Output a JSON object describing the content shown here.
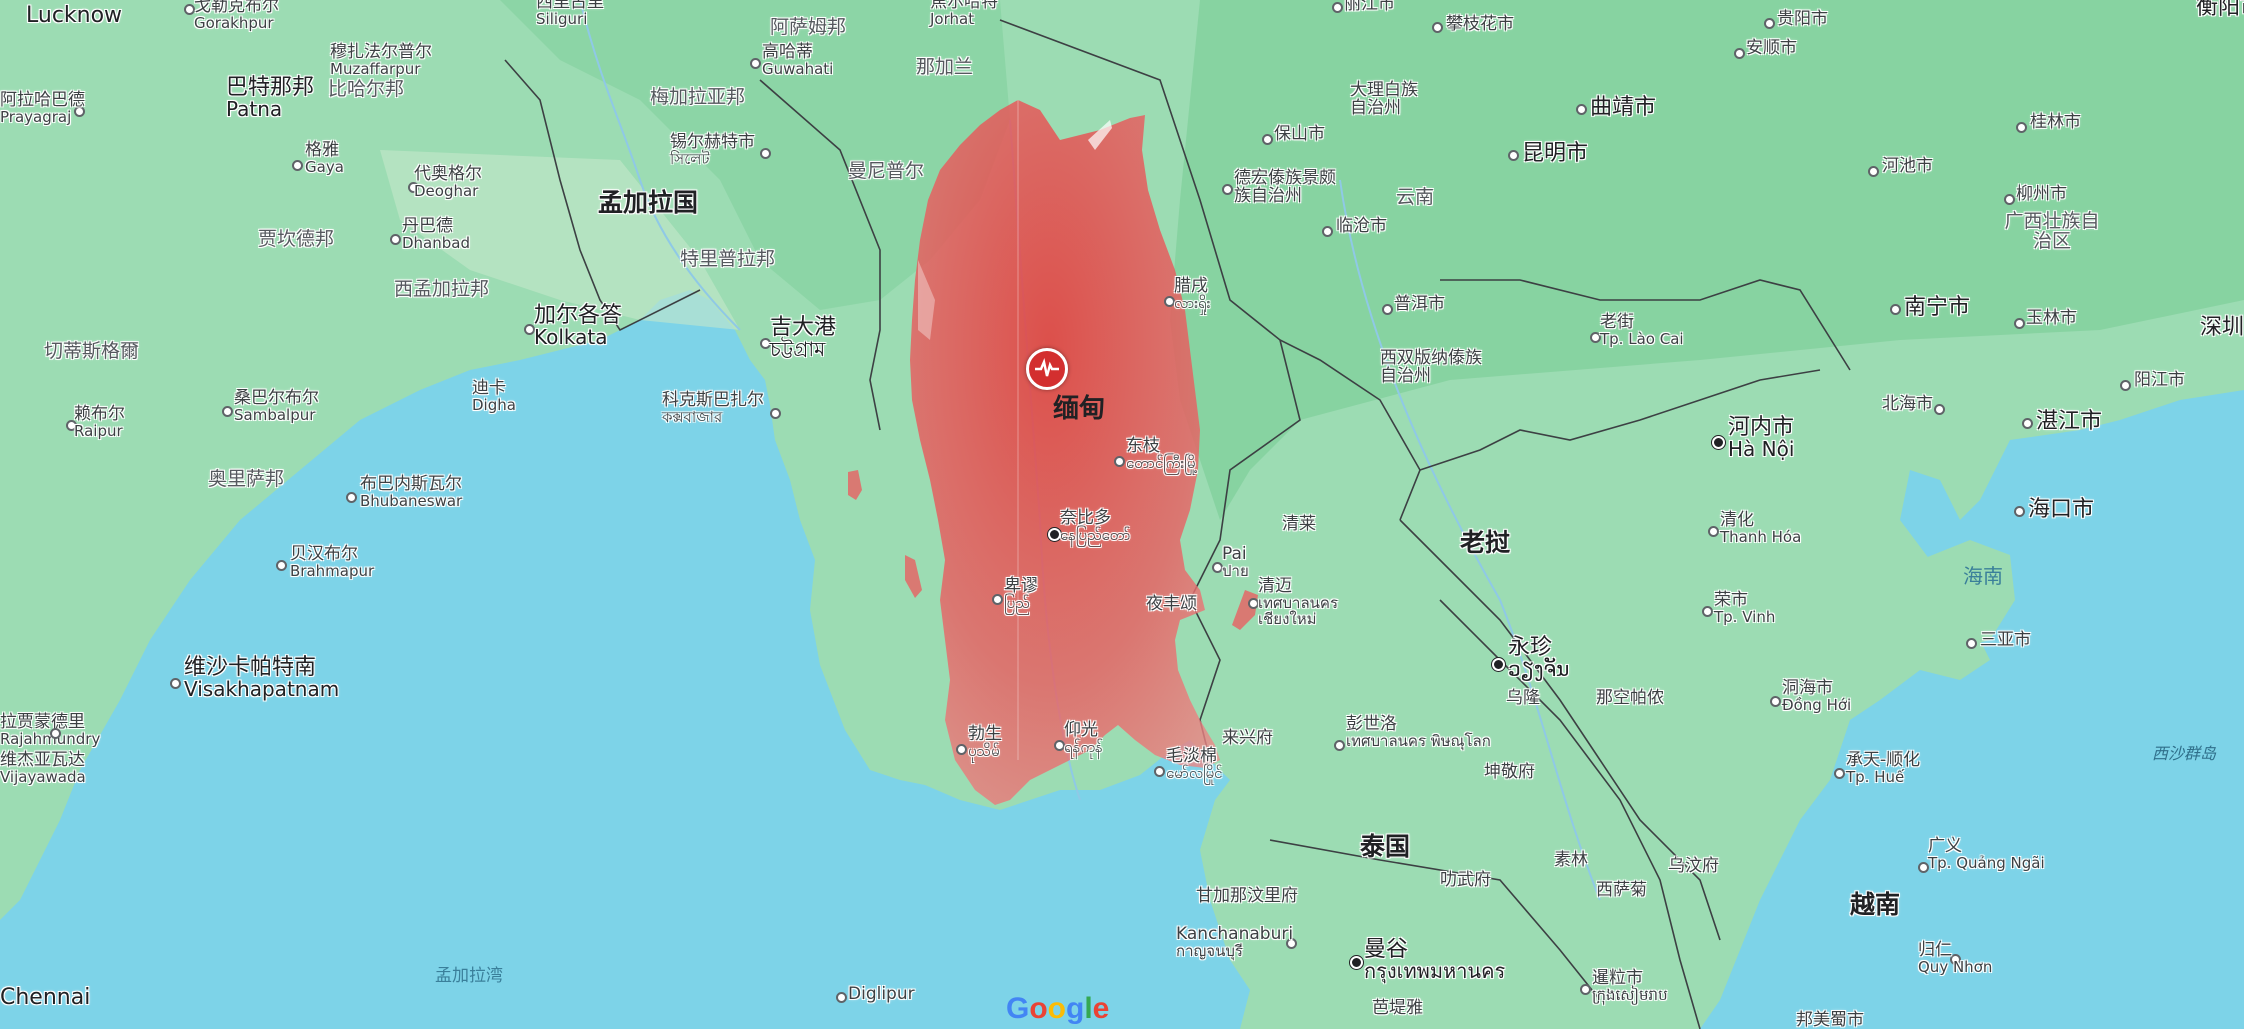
{
  "map": {
    "countries": [
      "孟加拉国",
      "缅甸",
      "老挝",
      "泰国",
      "越南"
    ],
    "regions": [
      "云南",
      "广西壮族自治区"
    ],
    "seas": [
      "海南",
      "孟加拉湾",
      "西沙群岛"
    ],
    "places": [
      {
        "zh": "Lucknow",
        "en": ""
      },
      {
        "zh": "戈勒克布尔",
        "en": "Gorakhpur"
      },
      {
        "zh": "西里古里",
        "en": "Siliguri"
      },
      {
        "zh": "阿萨姆邦",
        "en": ""
      },
      {
        "zh": "焦尔哈特",
        "en": "Jorhat"
      },
      {
        "zh": "丽江市",
        "en": ""
      },
      {
        "zh": "攀枝花市",
        "en": ""
      },
      {
        "zh": "贵阳市",
        "en": ""
      },
      {
        "zh": "衡阳市",
        "en": ""
      },
      {
        "zh": "巴特那邦",
        "en": "Patna"
      },
      {
        "zh": "穆扎法尔普尔",
        "en": "Muzaffarpur"
      },
      {
        "zh": "比哈尔邦",
        "en": ""
      },
      {
        "zh": "高哈蒂",
        "en": "Guwahati"
      },
      {
        "zh": "那加兰",
        "en": ""
      },
      {
        "zh": "大理白族自治州",
        "en": ""
      },
      {
        "zh": "曲靖市",
        "en": ""
      },
      {
        "zh": "安顺市",
        "en": ""
      },
      {
        "zh": "桂林市",
        "en": ""
      },
      {
        "zh": "阿拉哈巴德",
        "en": "Prayagraj"
      },
      {
        "zh": "梅加拉亚邦",
        "en": ""
      },
      {
        "zh": "保山市",
        "en": ""
      },
      {
        "zh": "昆明市",
        "en": ""
      },
      {
        "zh": "锡尔赫特市",
        "en": "সিলেট"
      },
      {
        "zh": "格雅",
        "en": "Gaya"
      },
      {
        "zh": "曼尼普尔",
        "en": ""
      },
      {
        "zh": "德宏傣族景颇族自治州",
        "en": ""
      },
      {
        "zh": "河池市",
        "en": ""
      },
      {
        "zh": "代奥格尔",
        "en": "Deoghar"
      },
      {
        "zh": "柳州市",
        "en": ""
      },
      {
        "zh": "临沧市",
        "en": ""
      },
      {
        "zh": "贾坎德邦",
        "en": ""
      },
      {
        "zh": "丹巴德",
        "en": "Dhanbad"
      },
      {
        "zh": "特里普拉邦",
        "en": ""
      },
      {
        "zh": "西孟加拉邦",
        "en": ""
      },
      {
        "zh": "腊戌",
        "en": "လားရှိုး"
      },
      {
        "zh": "普洱市",
        "en": ""
      },
      {
        "zh": "老街",
        "en": "Tp. Lào Cai"
      },
      {
        "zh": "南宁市",
        "en": ""
      },
      {
        "zh": "玉林市",
        "en": ""
      },
      {
        "zh": "深圳",
        "en": ""
      },
      {
        "zh": "切蒂斯格爾",
        "en": ""
      },
      {
        "zh": "加尔各答",
        "en": "Kolkata"
      },
      {
        "zh": "吉大港",
        "en": "চট্টগ্রাম"
      },
      {
        "zh": "西双版纳傣族自治州",
        "en": ""
      },
      {
        "zh": "阳江市",
        "en": ""
      },
      {
        "zh": "迪卡",
        "en": "Digha"
      },
      {
        "zh": "科克斯巴扎尔",
        "en": "কক্সবাজার"
      },
      {
        "zh": "北海市",
        "en": ""
      },
      {
        "zh": "湛江市",
        "en": ""
      },
      {
        "zh": "赖布尔",
        "en": "Raipur"
      },
      {
        "zh": "桑巴尔布尔",
        "en": "Sambalpur"
      },
      {
        "zh": "河内市",
        "en": "Hà Nội"
      },
      {
        "zh": "东枝",
        "en": "တောင်ကြီးမြို့"
      },
      {
        "zh": "奥里萨邦",
        "en": ""
      },
      {
        "zh": "布巴内斯瓦尔",
        "en": "Bhubaneswar"
      },
      {
        "zh": "清莱",
        "en": ""
      },
      {
        "zh": "奈比多",
        "en": "နေပြည်တော်"
      },
      {
        "zh": "海口市",
        "en": ""
      },
      {
        "zh": "清化",
        "en": "Thanh Hóa"
      },
      {
        "zh": "Pai",
        "en": "ปาย"
      },
      {
        "zh": "贝汉布尔",
        "en": "Brahmapur"
      },
      {
        "zh": "清迈",
        "en": "เทศบาลนคร เชียงใหม่"
      },
      {
        "zh": "荣市",
        "en": "Tp. Vinh"
      },
      {
        "zh": "卑谬",
        "en": "ပြည်"
      },
      {
        "zh": "夜丰颂",
        "en": ""
      },
      {
        "zh": "三亚市",
        "en": ""
      },
      {
        "zh": "永珍",
        "en": "ວຽງຈັນ"
      },
      {
        "zh": "维沙卡帕特南",
        "en": "Visakhapatnam"
      },
      {
        "zh": "乌隆",
        "en": ""
      },
      {
        "zh": "那空帕侬",
        "en": ""
      },
      {
        "zh": "洞海市",
        "en": "Đồng Hới"
      },
      {
        "zh": "拉贾蒙德里",
        "en": "Rajahmundry"
      },
      {
        "zh": "勃生",
        "en": "ပုသိမ်"
      },
      {
        "zh": "仰光",
        "en": "ရန်ကုန်"
      },
      {
        "zh": "来兴府",
        "en": ""
      },
      {
        "zh": "彭世洛",
        "en": "เทศบาลนคร พิษณุโลก"
      },
      {
        "zh": "维杰亚瓦达",
        "en": "Vijayawada"
      },
      {
        "zh": "毛淡棉",
        "en": "မော်လမြိုင်"
      },
      {
        "zh": "承天-顺化",
        "en": "Tp. Huế"
      },
      {
        "zh": "坤敬府",
        "en": ""
      },
      {
        "zh": "素林",
        "en": ""
      },
      {
        "zh": "广义",
        "en": "Tp. Quảng Ngãi"
      },
      {
        "zh": "叻武府",
        "en": ""
      },
      {
        "zh": "西萨菊",
        "en": ""
      },
      {
        "zh": "乌汶府",
        "en": ""
      },
      {
        "zh": "甘加那汶里府",
        "en": ""
      },
      {
        "zh": "Kanchanaburi",
        "en": "กาญจนบุรี"
      },
      {
        "zh": "归仁",
        "en": "Quy Nhơn"
      },
      {
        "zh": "曼谷",
        "en": "กรุงเทพมหานคร"
      },
      {
        "zh": "暹粒市",
        "en": "ក្រុងសៀមរាប"
      },
      {
        "zh": "芭堤雅",
        "en": ""
      },
      {
        "zh": "邦美蜀市",
        "en": ""
      },
      {
        "zh": "Diglipur",
        "en": ""
      },
      {
        "zh": "Chennai",
        "en": ""
      }
    ]
  },
  "logo": "Google",
  "colors": {
    "water": "#7dd3e8",
    "land": "#9cdcb3",
    "affected_area": "#e8585a",
    "epicenter": "#d32f2f"
  },
  "epicenter": {
    "icon": "earthquake-icon"
  }
}
